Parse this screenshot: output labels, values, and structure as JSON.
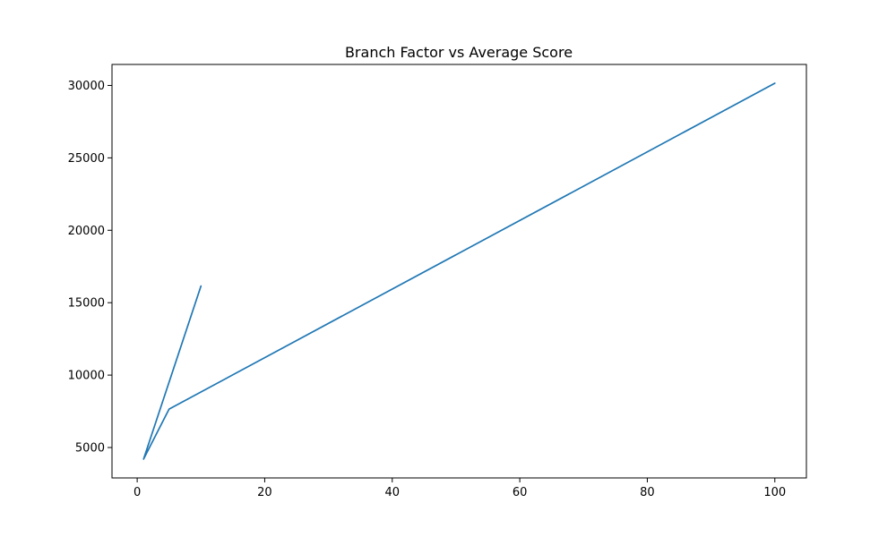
{
  "chart_data": {
    "type": "line",
    "title": "Branch Factor vs Average Score",
    "xlabel": "",
    "ylabel": "",
    "xlim": [
      -3.95,
      104.95
    ],
    "ylim": [
      2900,
      31450
    ],
    "x_ticks": [
      0,
      20,
      40,
      60,
      80,
      100
    ],
    "y_ticks": [
      5000,
      10000,
      15000,
      20000,
      25000,
      30000
    ],
    "grid": false,
    "legend": "none",
    "series": [
      {
        "color": "#1f77b4",
        "points": [
          {
            "x": 10,
            "y": 16150
          },
          {
            "x": 1,
            "y": 4200
          },
          {
            "x": 5,
            "y": 7650
          },
          {
            "x": 100,
            "y": 30150
          }
        ]
      }
    ]
  }
}
